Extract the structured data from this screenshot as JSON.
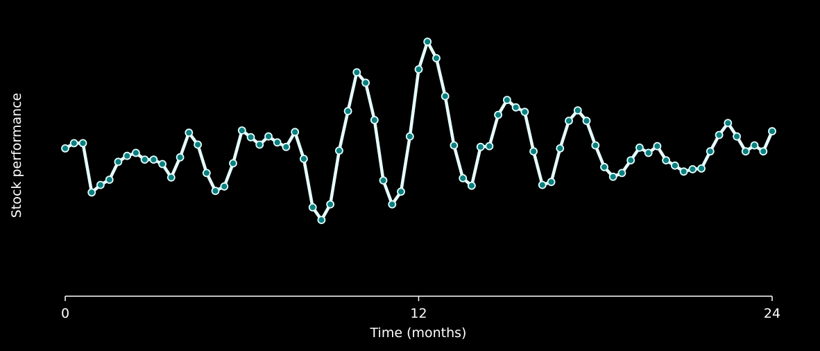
{
  "chart_data": {
    "type": "line",
    "title": "",
    "xlabel": "Time (months)",
    "ylabel": "Stock performance",
    "xlim": [
      0,
      24
    ],
    "ylim": [
      -1,
      1
    ],
    "xticks": [
      0,
      12,
      24
    ],
    "xtick_labels": [
      "0",
      "12",
      "24"
    ],
    "grid": false,
    "legend": "none",
    "y_axis_visible": false,
    "series": [
      {
        "color": "#e6ffff",
        "marker_color": "#0a7f7f",
        "x": [
          0,
          0.3,
          0.6,
          0.9,
          1.2,
          1.5,
          1.8,
          2.1,
          2.4,
          2.7,
          3.0,
          3.3,
          3.6,
          3.9,
          4.2,
          4.5,
          4.8,
          5.1,
          5.4,
          5.7,
          6.0,
          6.3,
          6.6,
          6.9,
          7.2,
          7.5,
          7.8,
          8.1,
          8.4,
          8.7,
          9.0,
          9.3,
          9.6,
          9.9,
          10.2,
          10.5,
          10.8,
          11.1,
          11.4,
          11.7,
          12.0,
          12.3,
          12.6,
          12.9,
          13.2,
          13.5,
          13.8,
          14.1,
          14.4,
          14.7,
          15.0,
          15.3,
          15.6,
          15.9,
          16.2,
          16.5,
          16.8,
          17.1,
          17.4,
          17.7,
          18.0,
          18.3,
          18.6,
          18.9,
          19.2,
          19.5,
          19.8,
          20.1,
          20.4,
          20.7,
          21.0,
          21.3,
          21.6,
          21.9,
          22.2,
          22.5,
          22.8,
          23.1,
          23.4,
          23.7,
          24.0
        ],
        "y": [
          0.005,
          0.04,
          0.04,
          -0.29,
          -0.24,
          -0.205,
          -0.085,
          -0.045,
          -0.025,
          -0.07,
          -0.07,
          -0.1,
          -0.19,
          -0.055,
          0.11,
          0.03,
          -0.16,
          -0.28,
          -0.25,
          -0.095,
          0.125,
          0.08,
          0.03,
          0.085,
          0.045,
          0.015,
          0.115,
          -0.065,
          -0.39,
          -0.475,
          -0.37,
          -0.01,
          0.255,
          0.515,
          0.445,
          0.195,
          -0.21,
          -0.37,
          -0.285,
          0.085,
          0.535,
          0.72,
          0.61,
          0.355,
          0.025,
          -0.195,
          -0.245,
          0.015,
          0.02,
          0.23,
          0.33,
          0.28,
          0.25,
          -0.015,
          -0.24,
          -0.22,
          0.005,
          0.19,
          0.26,
          0.19,
          0.025,
          -0.12,
          -0.185,
          -0.16,
          -0.075,
          0.01,
          -0.025,
          0.02,
          -0.075,
          -0.11,
          -0.15,
          -0.135,
          -0.13,
          -0.015,
          0.095,
          0.175,
          0.085,
          -0.015,
          0.025,
          -0.015,
          0.12
        ]
      }
    ]
  }
}
